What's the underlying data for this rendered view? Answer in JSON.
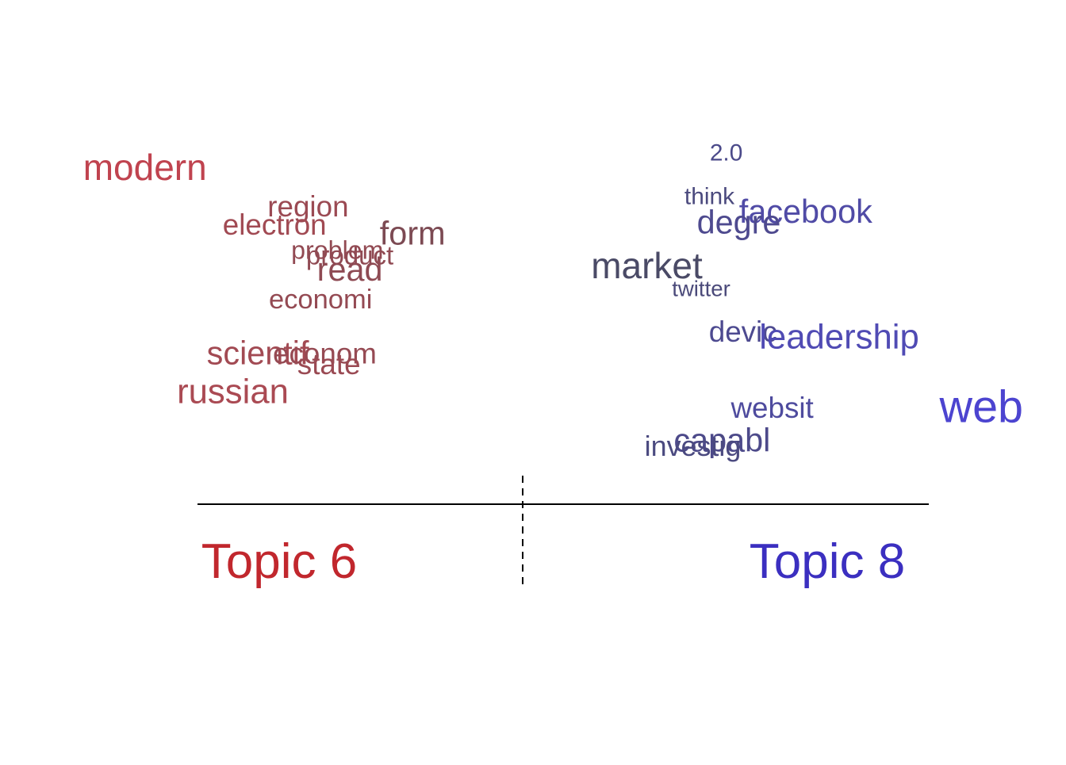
{
  "chart_data": {
    "type": "scatter",
    "description_type": "topic-contrast word plot",
    "topics": [
      {
        "label": "Topic 6",
        "color": "#c1272d"
      },
      {
        "label": "Topic 8",
        "color": "#3b2fc0"
      }
    ],
    "words": [
      {
        "word": "modern",
        "contrast": -1.0,
        "y": 2.2,
        "weight": 1.0,
        "color": "#c0434f"
      },
      {
        "word": "region",
        "contrast": -0.61,
        "y": 1.85,
        "weight": 0.8,
        "color": "#9b4a53"
      },
      {
        "word": "electron",
        "contrast": -0.69,
        "y": 1.68,
        "weight": 0.8,
        "color": "#a14a53"
      },
      {
        "word": "form",
        "contrast": -0.36,
        "y": 1.6,
        "weight": 0.9,
        "color": "#7c4a53"
      },
      {
        "word": "problem",
        "contrast": -0.54,
        "y": 1.45,
        "weight": 0.7,
        "color": "#924a53"
      },
      {
        "word": "product",
        "contrast": -0.51,
        "y": 1.4,
        "weight": 0.72,
        "color": "#904a53"
      },
      {
        "word": "read",
        "contrast": -0.51,
        "y": 1.27,
        "weight": 0.9,
        "color": "#8e4a53"
      },
      {
        "word": "economi",
        "contrast": -0.58,
        "y": 1.0,
        "weight": 0.75,
        "color": "#944a53"
      },
      {
        "word": "scientif",
        "contrast": -0.73,
        "y": 0.5,
        "weight": 0.9,
        "color": "#a24a53"
      },
      {
        "word": "econom",
        "contrast": -0.57,
        "y": 0.5,
        "weight": 0.8,
        "color": "#964a53"
      },
      {
        "word": "state",
        "contrast": -0.56,
        "y": 0.4,
        "weight": 0.8,
        "color": "#9a4a53"
      },
      {
        "word": "russian",
        "contrast": -0.79,
        "y": 0.15,
        "weight": 0.95,
        "color": "#aa4a53"
      },
      {
        "word": "2.0",
        "contrast": 0.39,
        "y": 2.35,
        "weight": 0.65,
        "color": "#4b4a8a"
      },
      {
        "word": "think",
        "contrast": 0.35,
        "y": 1.95,
        "weight": 0.65,
        "color": "#4b4a7e"
      },
      {
        "word": "facebook",
        "contrast": 0.58,
        "y": 1.8,
        "weight": 0.9,
        "color": "#504ba6"
      },
      {
        "word": "degre",
        "contrast": 0.42,
        "y": 1.7,
        "weight": 0.9,
        "color": "#4e4a8f"
      },
      {
        "word": "market",
        "contrast": 0.2,
        "y": 1.3,
        "weight": 1.0,
        "color": "#4a4a66"
      },
      {
        "word": "twitter",
        "contrast": 0.33,
        "y": 1.1,
        "weight": 0.6,
        "color": "#4b4a7a"
      },
      {
        "word": "devic",
        "contrast": 0.43,
        "y": 0.7,
        "weight": 0.8,
        "color": "#4d4a90"
      },
      {
        "word": "leadership",
        "contrast": 0.66,
        "y": 0.65,
        "weight": 0.95,
        "color": "#504bb4"
      },
      {
        "word": "websit",
        "contrast": 0.5,
        "y": 0.0,
        "weight": 0.8,
        "color": "#4e4b9e"
      },
      {
        "word": "web",
        "contrast": 1.0,
        "y": 0.0,
        "weight": 1.25,
        "color": "#4c44d0"
      },
      {
        "word": "capabl",
        "contrast": 0.38,
        "y": -0.3,
        "weight": 0.9,
        "color": "#4d4a8a"
      },
      {
        "word": "investig",
        "contrast": 0.31,
        "y": -0.35,
        "weight": 0.78,
        "color": "#4b4a80"
      }
    ],
    "xlim": [
      -1.1,
      1.1
    ],
    "ylim": [
      -0.6,
      2.6
    ],
    "axes": false,
    "grid": false,
    "divider": "dashed vertical line at 0"
  }
}
